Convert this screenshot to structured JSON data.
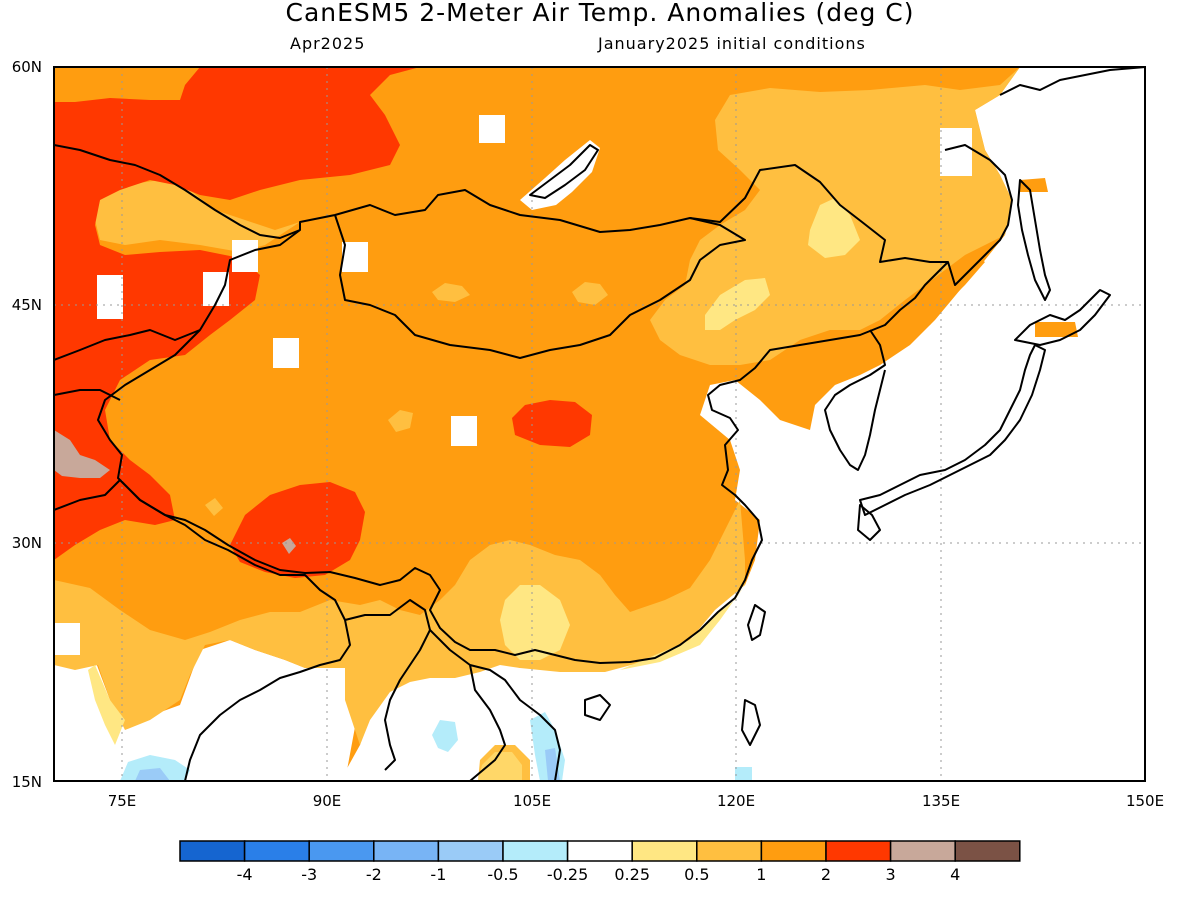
{
  "title": "CanESM5 2-Meter Air Temp. Anomalies (deg C)",
  "subtitle_left": "Apr2025",
  "subtitle_right": "January2025 initial conditions",
  "map": {
    "lon_range": [
      70,
      150
    ],
    "lat_range": [
      15,
      60
    ],
    "lon_ticks": [
      "75E",
      "90E",
      "105E",
      "120E",
      "135E",
      "150E"
    ],
    "lat_ticks": [
      "60N",
      "45N",
      "30N",
      "15N"
    ],
    "gridlines": "dotted"
  },
  "legend": {
    "colors": [
      "#1565d0",
      "#2a7fe8",
      "#4a98f0",
      "#78b4f5",
      "#9acbf7",
      "#b4ecfa",
      "#ffffff",
      "#ffe783",
      "#ffbf40",
      "#ff9d10",
      "#ff3800",
      "#c8a89a",
      "#7b5245"
    ],
    "labels": [
      "-4",
      "-3",
      "-2",
      "-1",
      "-0.5",
      "-0.25",
      "0.25",
      "0.5",
      "1",
      "2",
      "3",
      "4"
    ]
  }
}
